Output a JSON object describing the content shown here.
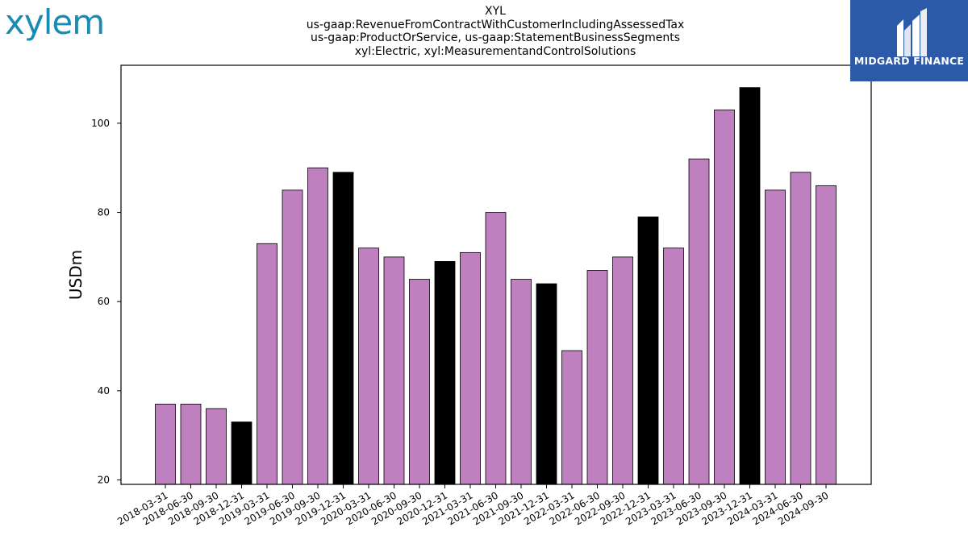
{
  "header": {
    "company_logo": "xylem",
    "title_lines": [
      "XYL",
      "us-gaap:RevenueFromContractWithCustomerIncludingAssessedTax",
      "us-gaap:ProductOrService, us-gaap:StatementBusinessSegments",
      "xyl:Electric, xyl:MeasurementandControlSolutions"
    ],
    "watermark_brand": "MIDGARD FINANCE"
  },
  "colors": {
    "bar_default": "#bf80bf",
    "bar_highlight": "#000000",
    "logo_text": "#1a8bb5",
    "watermark_bg": "#2d5aa8"
  },
  "chart_data": {
    "type": "bar",
    "ylabel": "USDm",
    "xlabel": "",
    "ylim": [
      19,
      113
    ],
    "yticks": [
      20,
      40,
      60,
      80,
      100
    ],
    "grid": false,
    "categories": [
      "2018-03-31",
      "2018-06-30",
      "2018-09-30",
      "2018-12-31",
      "2019-03-31",
      "2019-06-30",
      "2019-09-30",
      "2019-12-31",
      "2020-03-31",
      "2020-06-30",
      "2020-09-30",
      "2020-12-31",
      "2021-03-31",
      "2021-06-30",
      "2021-09-30",
      "2021-12-31",
      "2022-03-31",
      "2022-06-30",
      "2022-09-30",
      "2022-12-31",
      "2023-03-31",
      "2023-06-30",
      "2023-09-30",
      "2023-12-31",
      "2024-03-31",
      "2024-06-30",
      "2024-09-30"
    ],
    "values": [
      37,
      37,
      36,
      33,
      73,
      85,
      90,
      89,
      72,
      70,
      65,
      69,
      71,
      80,
      65,
      64,
      49,
      67,
      70,
      79,
      72,
      92,
      103,
      108,
      85,
      89,
      86
    ],
    "highlight_categories": [
      "2018-12-31",
      "2019-12-31",
      "2020-12-31",
      "2021-12-31",
      "2022-12-31",
      "2023-12-31"
    ]
  }
}
